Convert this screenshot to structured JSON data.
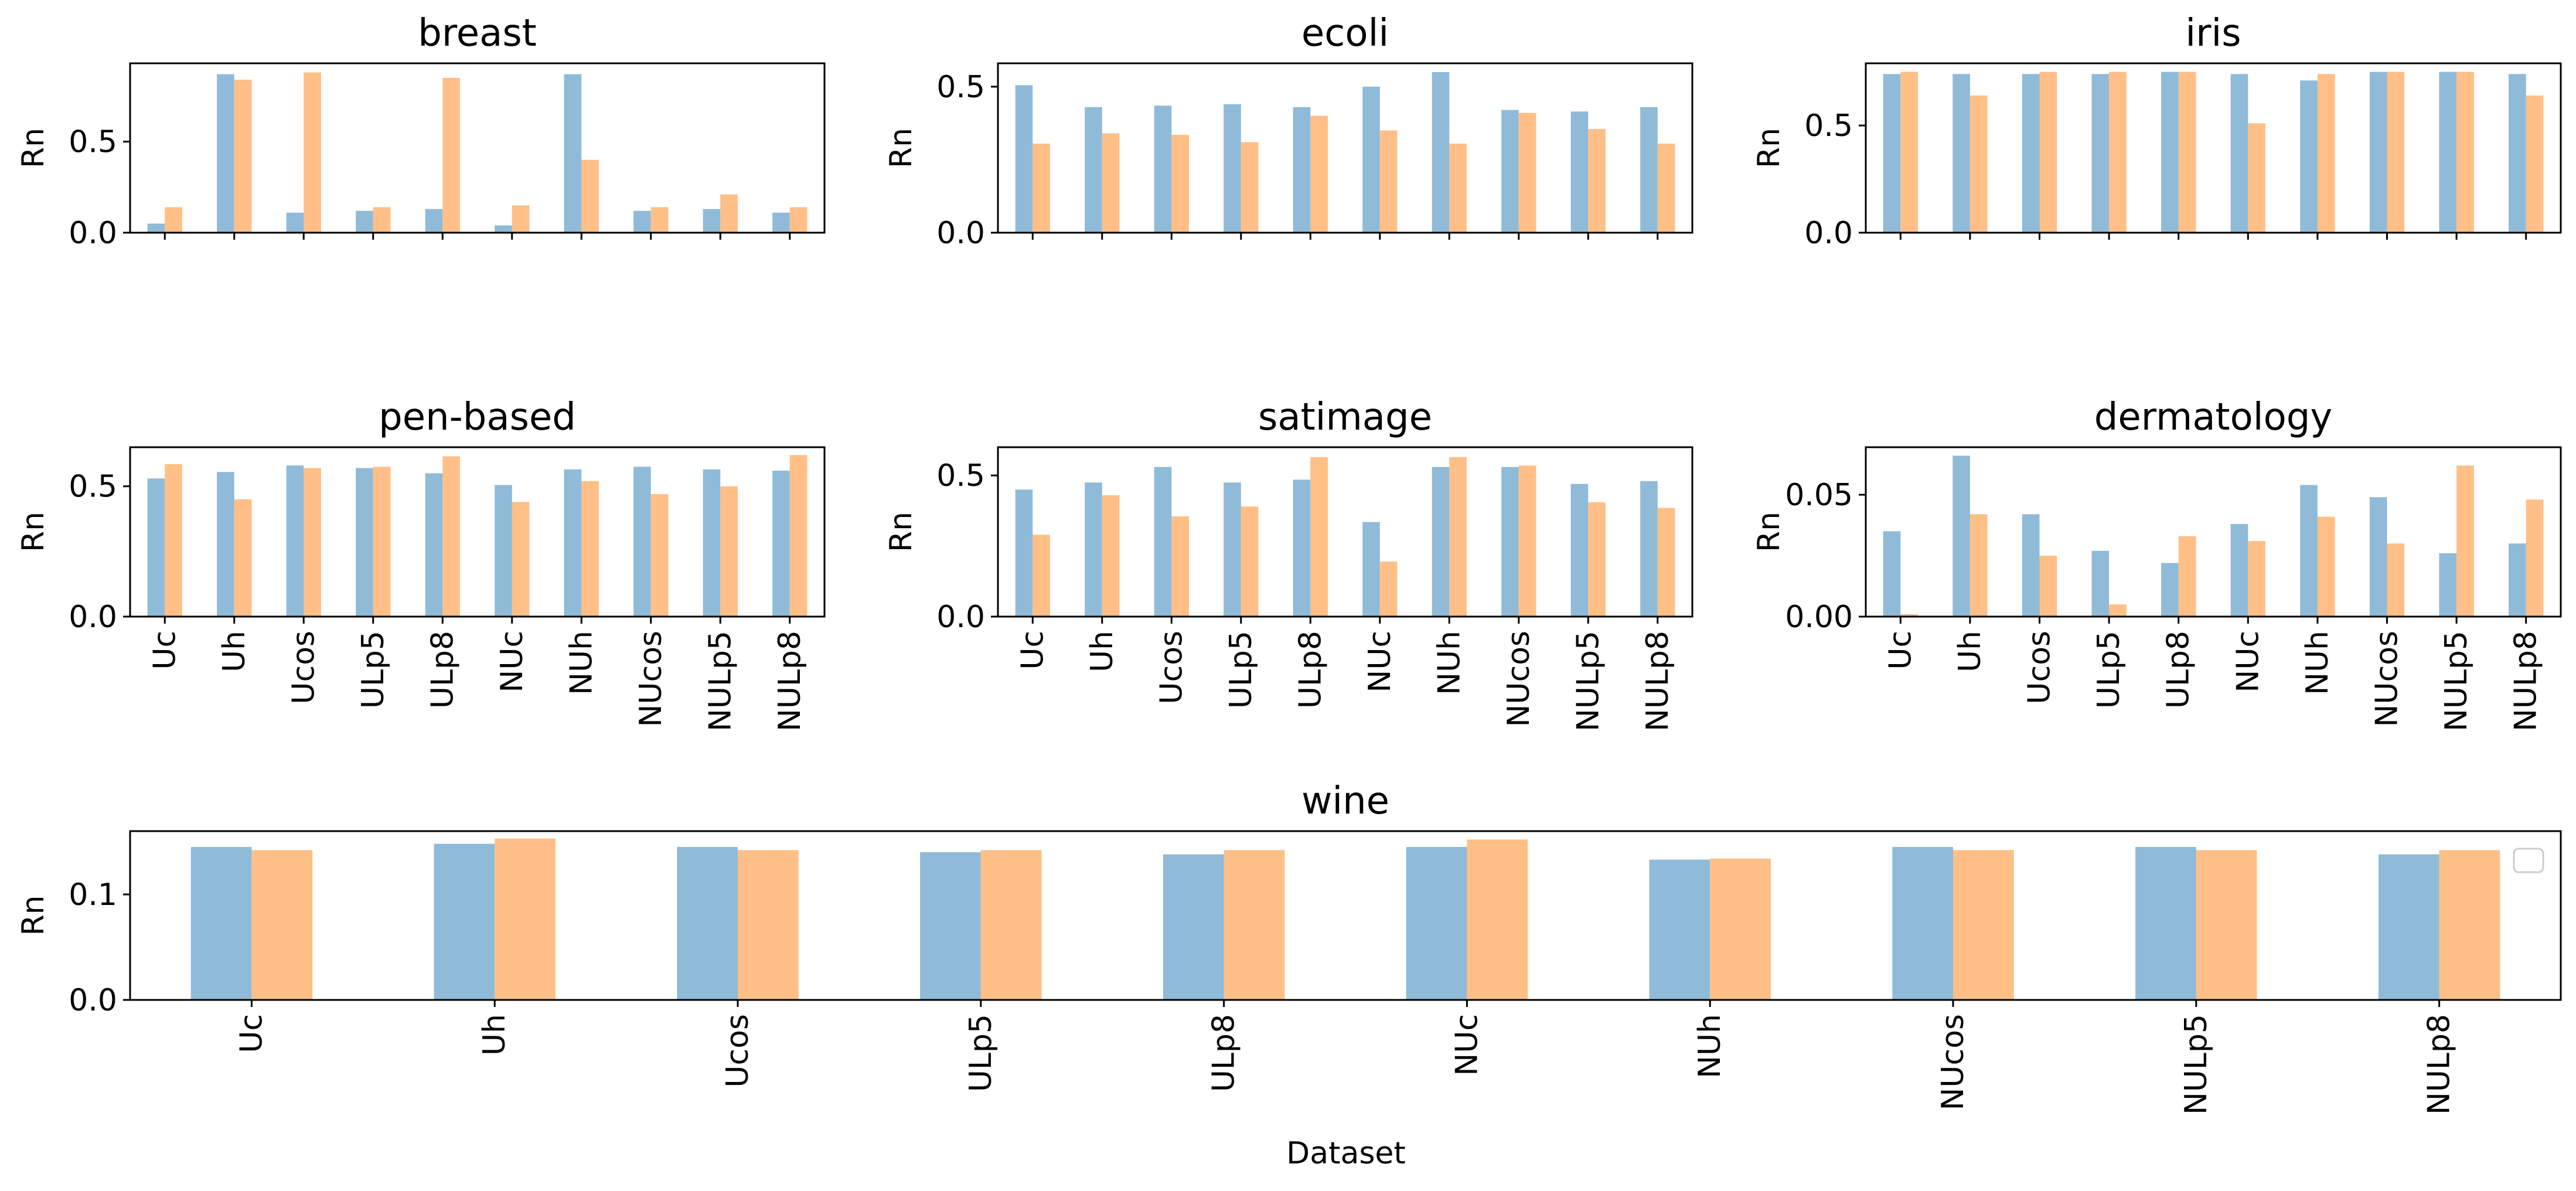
{
  "figure": {
    "xlabel": "Dataset",
    "colors": {
      "series_a": "#8fbbd9",
      "series_b": "#ffbf86",
      "axes": "#000000",
      "background": "#ffffff"
    }
  },
  "chart_data": [
    {
      "type": "bar",
      "title": "breast",
      "xlabel": "",
      "ylabel": "Rn",
      "ylim": [
        0,
        0.93
      ],
      "yticks": [
        0.0,
        0.5
      ],
      "ytick_labels": [
        "0.0",
        "0.5"
      ],
      "show_xtick_labels": false,
      "categories": [
        "Uc",
        "Uh",
        "Ucos",
        "ULp5",
        "ULp8",
        "NUc",
        "NUh",
        "NUcos",
        "NULp5",
        "NULp8"
      ],
      "series": [
        {
          "values": [
            0.05,
            0.87,
            0.11,
            0.12,
            0.13,
            0.04,
            0.87,
            0.12,
            0.13,
            0.11
          ]
        },
        {
          "values": [
            0.14,
            0.84,
            0.88,
            0.14,
            0.85,
            0.15,
            0.4,
            0.14,
            0.21,
            0.14
          ]
        }
      ],
      "legend": "none",
      "grid": false
    },
    {
      "type": "bar",
      "title": "ecoli",
      "xlabel": "",
      "ylabel": "Rn",
      "ylim": [
        0,
        0.58
      ],
      "yticks": [
        0.0,
        0.5
      ],
      "ytick_labels": [
        "0.0",
        "0.5"
      ],
      "show_xtick_labels": false,
      "categories": [
        "Uc",
        "Uh",
        "Ucos",
        "ULp5",
        "ULp8",
        "NUc",
        "NUh",
        "NUcos",
        "NULp5",
        "NULp8"
      ],
      "series": [
        {
          "values": [
            0.505,
            0.43,
            0.435,
            0.44,
            0.43,
            0.5,
            0.55,
            0.42,
            0.415,
            0.43
          ]
        },
        {
          "values": [
            0.305,
            0.34,
            0.335,
            0.31,
            0.4,
            0.35,
            0.305,
            0.41,
            0.355,
            0.305
          ]
        }
      ],
      "legend": "none",
      "grid": false
    },
    {
      "type": "bar",
      "title": "iris",
      "xlabel": "",
      "ylabel": "Rn",
      "ylim": [
        0,
        0.79
      ],
      "yticks": [
        0.0,
        0.5
      ],
      "ytick_labels": [
        "0.0",
        "0.5"
      ],
      "show_xtick_labels": false,
      "categories": [
        "Uc",
        "Uh",
        "Ucos",
        "ULp5",
        "ULp8",
        "NUc",
        "NUh",
        "NUcos",
        "NULp5",
        "NULp8"
      ],
      "series": [
        {
          "values": [
            0.74,
            0.74,
            0.74,
            0.74,
            0.75,
            0.74,
            0.71,
            0.75,
            0.75,
            0.74
          ]
        },
        {
          "values": [
            0.75,
            0.64,
            0.75,
            0.75,
            0.75,
            0.51,
            0.74,
            0.75,
            0.75,
            0.64
          ]
        }
      ],
      "legend": "none",
      "grid": false
    },
    {
      "type": "bar",
      "title": "pen-based",
      "xlabel": "",
      "ylabel": "Rn",
      "ylim": [
        0,
        0.65
      ],
      "yticks": [
        0.0,
        0.5
      ],
      "ytick_labels": [
        "0.0",
        "0.5"
      ],
      "show_xtick_labels": true,
      "categories": [
        "Uc",
        "Uh",
        "Ucos",
        "ULp5",
        "ULp8",
        "NUc",
        "NUh",
        "NUcos",
        "NULp5",
        "NULp8"
      ],
      "series": [
        {
          "values": [
            0.53,
            0.555,
            0.58,
            0.57,
            0.55,
            0.505,
            0.565,
            0.575,
            0.565,
            0.56
          ]
        },
        {
          "values": [
            0.585,
            0.45,
            0.57,
            0.575,
            0.615,
            0.44,
            0.52,
            0.47,
            0.5,
            0.62
          ]
        }
      ],
      "legend": "none",
      "grid": false
    },
    {
      "type": "bar",
      "title": "satimage",
      "xlabel": "",
      "ylabel": "Rn",
      "ylim": [
        0,
        0.6
      ],
      "yticks": [
        0.0,
        0.5
      ],
      "ytick_labels": [
        "0.0",
        "0.5"
      ],
      "show_xtick_labels": true,
      "categories": [
        "Uc",
        "Uh",
        "Ucos",
        "ULp5",
        "ULp8",
        "NUc",
        "NUh",
        "NUcos",
        "NULp5",
        "NULp8"
      ],
      "series": [
        {
          "values": [
            0.45,
            0.475,
            0.53,
            0.475,
            0.485,
            0.335,
            0.53,
            0.53,
            0.47,
            0.48
          ]
        },
        {
          "values": [
            0.29,
            0.43,
            0.355,
            0.39,
            0.565,
            0.195,
            0.565,
            0.535,
            0.405,
            0.385
          ]
        }
      ],
      "legend": "none",
      "grid": false
    },
    {
      "type": "bar",
      "title": "dermatology",
      "xlabel": "",
      "ylabel": "Rn",
      "ylim": [
        0,
        0.0695
      ],
      "yticks": [
        0.0,
        0.05
      ],
      "ytick_labels": [
        "0.00",
        "0.05"
      ],
      "show_xtick_labels": true,
      "categories": [
        "Uc",
        "Uh",
        "Ucos",
        "ULp5",
        "ULp8",
        "NUc",
        "NUh",
        "NUcos",
        "NULp5",
        "NULp8"
      ],
      "series": [
        {
          "values": [
            0.035,
            0.066,
            0.042,
            0.027,
            0.022,
            0.038,
            0.054,
            0.049,
            0.026,
            0.03
          ]
        },
        {
          "values": [
            0.001,
            0.042,
            0.025,
            0.005,
            0.033,
            0.031,
            0.041,
            0.03,
            0.062,
            0.048
          ]
        }
      ],
      "legend": "none",
      "grid": false
    },
    {
      "type": "bar",
      "title": "wine",
      "xlabel": "Dataset",
      "ylabel": "Rn",
      "ylim": [
        0,
        0.16
      ],
      "yticks": [
        0.0,
        0.1
      ],
      "ytick_labels": [
        "0.0",
        "0.1"
      ],
      "show_xtick_labels": true,
      "categories": [
        "Uc",
        "Uh",
        "Ucos",
        "ULp5",
        "ULp8",
        "NUc",
        "NUh",
        "NUcos",
        "NULp5",
        "NULp8"
      ],
      "series": [
        {
          "values": [
            0.145,
            0.148,
            0.145,
            0.14,
            0.138,
            0.145,
            0.133,
            0.145,
            0.145,
            0.138
          ]
        },
        {
          "values": [
            0.142,
            0.153,
            0.142,
            0.142,
            0.142,
            0.152,
            0.134,
            0.142,
            0.142,
            0.142
          ]
        }
      ],
      "legend": "top-right (empty)",
      "grid": false
    }
  ]
}
